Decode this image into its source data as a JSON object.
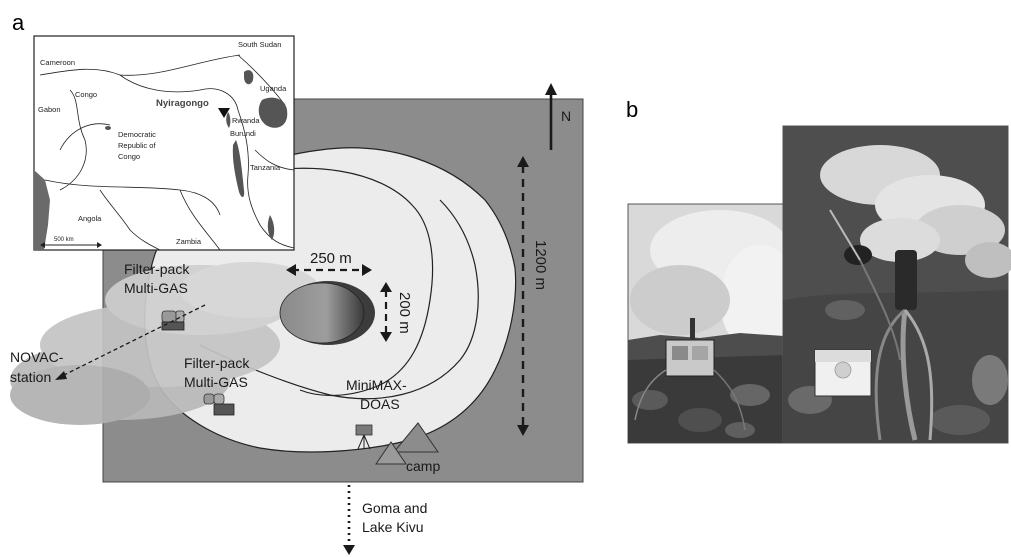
{
  "panel_a": {
    "letter": "a",
    "labels": {
      "north": "N",
      "dist_1200": "1200 m",
      "dist_250": "250 m",
      "dist_200": "200 m",
      "filter_pack_1": "Filter-pack",
      "multigas_1": "Multi-GAS",
      "filter_pack_2": "Filter-pack",
      "multigas_2": "Multi-GAS",
      "minimax_1": "MiniMAX-",
      "minimax_2": "DOAS",
      "novac_1": "NOVAC-",
      "novac_2": "station",
      "camp": "camp",
      "goma_1": "Goma and",
      "goma_2": "Lake Kivu"
    },
    "inset_map": {
      "cameroon": "Cameroon",
      "south_sudan": "South Sudan",
      "uganda": "Uganda",
      "congo": "Congo",
      "gabon": "Gabon",
      "nyiragongo": "Nyiragongo",
      "rwanda": "Rwanda",
      "burundi": "Burundi",
      "drc_1": "Democratic",
      "drc_2": "Republic of",
      "drc_3": "Congo",
      "tanzania": "Tanzania",
      "angola": "Angola",
      "zambia": "Zambia",
      "scale": "500 km"
    }
  },
  "panel_b": {
    "letter": "b"
  },
  "colors": {
    "background_box": "#8c8c8c",
    "crater_outer": "#e9e9e9",
    "plume": "#b8b8b8",
    "lake_dark": "#555555",
    "water": "#666666"
  }
}
